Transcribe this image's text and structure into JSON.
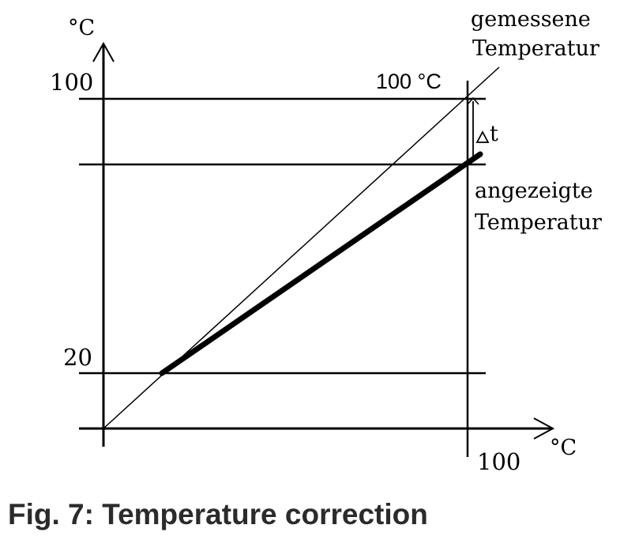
{
  "diagram": {
    "y_axis_unit": "°C",
    "x_axis_unit": "°C",
    "y_tick_100": "100",
    "y_tick_20": "20",
    "x_tick_100": "100",
    "point_100_label": "100 °C",
    "measured_label_line1": "gemessene",
    "measured_label_line2": "Temperatur",
    "displayed_label_line1": "angezeigte",
    "displayed_label_line2": "Temperatur",
    "delta_label": "t",
    "delta_symbol": "triangle-delta-icon"
  },
  "caption": {
    "text": "Fig. 7: Temperature correction"
  }
}
